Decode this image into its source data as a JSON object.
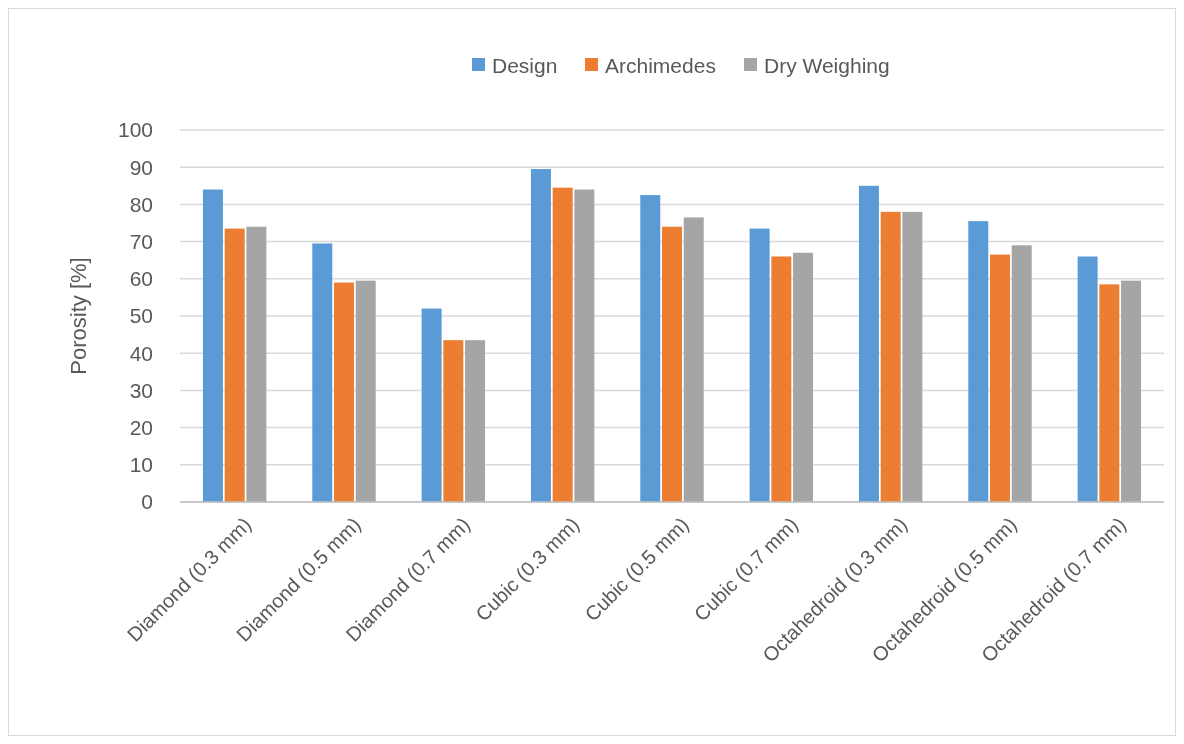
{
  "chart_data": {
    "type": "bar",
    "ylabel": "Porosity [%]",
    "categories": [
      "Diamond (0.3 mm)",
      "Diamond (0.5 mm)",
      "Diamond (0.7 mm)",
      "Cubic (0.3 mm)",
      "Cubic (0.5 mm)",
      "Cubic (0.7 mm)",
      "Octahedroid (0.3 mm)",
      "Octahedroid (0.5 mm)",
      "Octahedroid (0.7 mm)"
    ],
    "series": [
      {
        "name": "Design",
        "color": "#5b9bd5",
        "values": [
          84,
          69.5,
          52,
          89.5,
          82.5,
          73.5,
          85,
          75.5,
          66
        ]
      },
      {
        "name": "Archimedes",
        "color": "#ed7d31",
        "values": [
          73.5,
          59,
          43.5,
          84.5,
          74,
          66,
          78,
          66.5,
          58.5
        ]
      },
      {
        "name": "Dry Weighing",
        "color": "#a5a5a5",
        "values": [
          74,
          59.5,
          43.5,
          84,
          76.5,
          67,
          78,
          69,
          59.5
        ]
      }
    ],
    "ylim": [
      0,
      100
    ],
    "yticks": [
      0,
      10,
      20,
      30,
      40,
      50,
      60,
      70,
      80,
      90,
      100
    ],
    "grid": "y",
    "legend": "top"
  }
}
